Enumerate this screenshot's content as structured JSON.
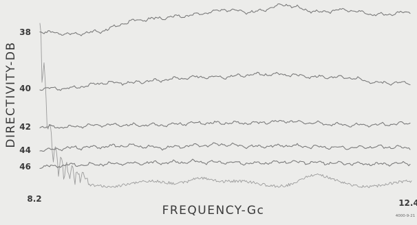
{
  "chart_data": {
    "type": "line",
    "xlabel": "FREQUENCY-Gc",
    "ylabel": "DIRECTIVITY-DB",
    "x_ticks": [
      "8.2",
      "12.4"
    ],
    "x_range": [
      8.2,
      12.4
    ],
    "y_ticks": [
      "38",
      "40",
      "42",
      "44",
      "46"
    ],
    "y_range": [
      37,
      46.7
    ],
    "grid": false,
    "legend": "none",
    "stamp": "4000-9-21",
    "trace_color": "#7a7a7a",
    "background": "#ececea",
    "x": [
      8.2,
      8.55,
      8.9,
      9.25,
      9.6,
      9.95,
      10.3,
      10.65,
      11.0,
      11.35,
      11.7,
      12.05,
      12.4
    ],
    "series": [
      {
        "values": [
          38.0,
          38.1,
          38.0,
          37.6,
          37.5,
          37.4,
          37.2,
          37.3,
          37.0,
          37.3,
          37.2,
          37.4,
          37.3
        ]
      },
      {
        "values": [
          40.0,
          40.0,
          39.8,
          39.8,
          39.7,
          39.6,
          39.6,
          39.5,
          39.5,
          39.6,
          39.6,
          39.8,
          39.8
        ]
      },
      {
        "values": [
          42.0,
          42.0,
          41.9,
          41.9,
          41.9,
          41.8,
          41.8,
          41.8,
          41.7,
          41.8,
          41.9,
          41.9,
          41.8
        ]
      },
      {
        "values": [
          44.0,
          43.8,
          43.7,
          43.6,
          43.8,
          43.6,
          43.5,
          43.7,
          43.6,
          43.7,
          43.8,
          43.7,
          43.8
        ]
      },
      {
        "values": [
          46.0,
          45.8,
          45.7,
          45.6,
          45.5,
          45.4,
          45.5,
          45.6,
          45.4,
          45.5,
          45.6,
          45.7,
          45.6
        ]
      }
    ]
  }
}
